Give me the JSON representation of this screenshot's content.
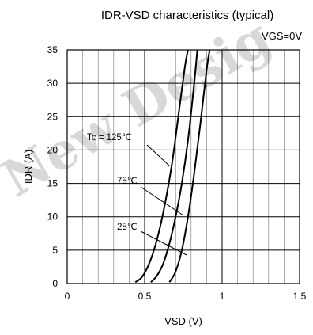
{
  "chart_data": {
    "type": "line",
    "title": "IDR-VSD characteristics (typical)",
    "condition": "VGS=0V",
    "xlabel": "VSD (V)",
    "ylabel": "IDR (A)",
    "xlim": [
      0,
      1.5
    ],
    "ylim": [
      0,
      35
    ],
    "xticks": [
      0,
      0.5,
      1,
      1.5
    ],
    "xtick_labels": [
      "0",
      "0.5",
      "1",
      "1.5"
    ],
    "yticks": [
      0,
      5,
      10,
      15,
      20,
      25,
      30,
      35
    ],
    "ytick_labels": [
      "0",
      "5",
      "10",
      "15",
      "20",
      "25",
      "30",
      "35"
    ],
    "grid": true,
    "series": [
      {
        "name": "Tc = 125℃",
        "x": [
          0.44,
          0.48,
          0.52,
          0.56,
          0.6,
          0.64,
          0.68,
          0.72,
          0.76,
          0.78
        ],
        "y": [
          0.2,
          0.9,
          2.5,
          5.0,
          8.5,
          13.0,
          18.5,
          25.5,
          32.5,
          35
        ]
      },
      {
        "name": "75℃",
        "x": [
          0.54,
          0.58,
          0.62,
          0.66,
          0.7,
          0.74,
          0.78,
          0.82,
          0.84
        ],
        "y": [
          0.2,
          1.2,
          3.0,
          6.0,
          10.0,
          15.0,
          21.5,
          30.0,
          35
        ]
      },
      {
        "name": "25℃",
        "x": [
          0.66,
          0.7,
          0.74,
          0.78,
          0.82,
          0.86,
          0.9,
          0.92
        ],
        "y": [
          0.2,
          1.8,
          5.0,
          10.0,
          16.5,
          24.0,
          32.0,
          35
        ]
      }
    ],
    "annotations": [
      {
        "text": "Tc = 125℃",
        "series": 0
      },
      {
        "text": "75℃",
        "series": 1
      },
      {
        "text": "25℃",
        "series": 2
      }
    ]
  },
  "watermark": "New Desig"
}
